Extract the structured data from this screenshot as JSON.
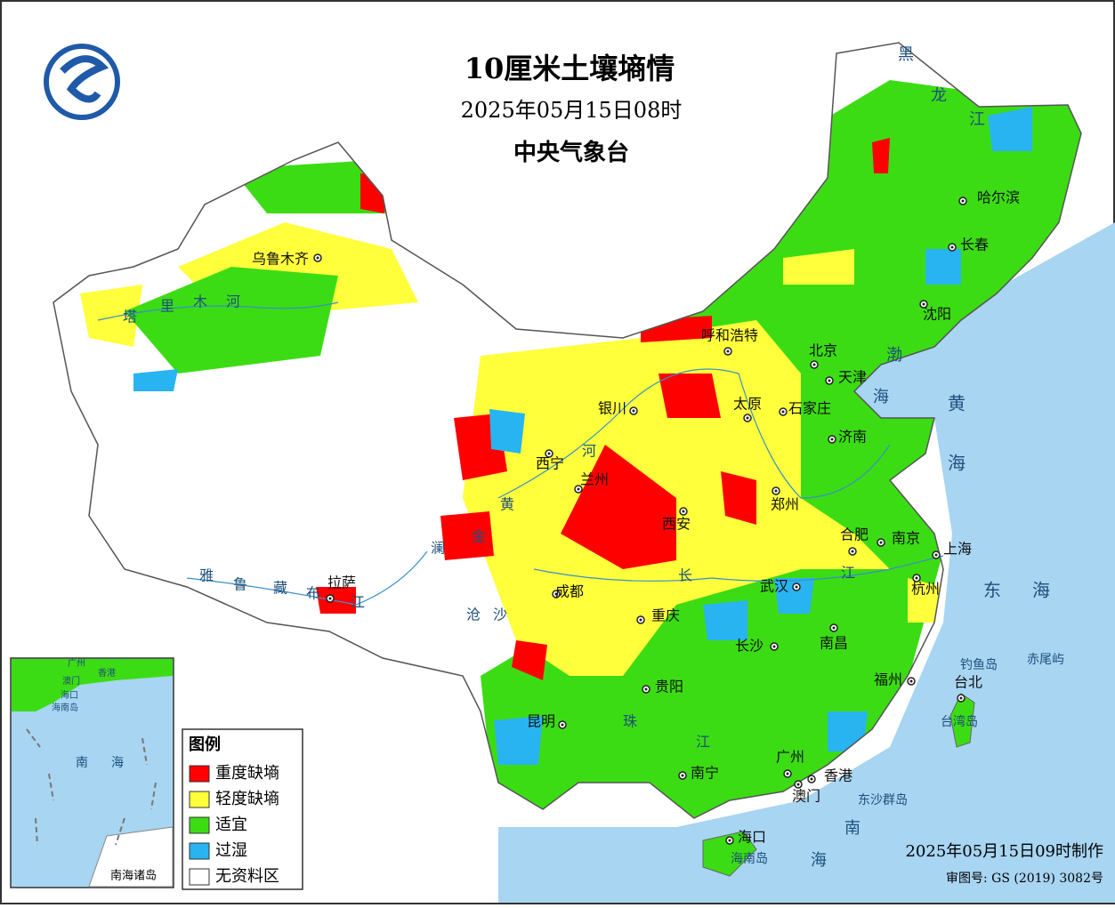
{
  "header": {
    "title": "10厘米土壤墒情",
    "datetime": "2025年05月15日08时",
    "agency": "中央气象台"
  },
  "legend": {
    "title": "图例",
    "items": [
      {
        "label": "重度缺墒",
        "color": "#ff0000"
      },
      {
        "label": "轻度缺墒",
        "color": "#ffff3c"
      },
      {
        "label": "适宜",
        "color": "#3cdc14"
      },
      {
        "label": "过湿",
        "color": "#28b4f0"
      },
      {
        "label": "无资料区",
        "color": "#ffffff"
      }
    ]
  },
  "cities": [
    "乌鲁木齐",
    "呼和浩特",
    "北京",
    "天津",
    "石家庄",
    "太原",
    "银川",
    "西宁",
    "兰州",
    "济南",
    "郑州",
    "西安",
    "合肥",
    "南京",
    "上海",
    "杭州",
    "武汉",
    "成都",
    "重庆",
    "长沙",
    "南昌",
    "贵阳",
    "昆明",
    "福州",
    "台北",
    "南宁",
    "广州",
    "香港",
    "澳门",
    "海口",
    "拉萨",
    "哈尔滨",
    "长春",
    "沈阳"
  ],
  "map_labels": [
    "黑",
    "龙",
    "江",
    "渤",
    "海",
    "黄",
    "海",
    "东",
    "海",
    "南",
    "海",
    "钓鱼岛",
    "赤尾屿",
    "台湾岛",
    "东沙群岛",
    "海南岛",
    "塔",
    "里",
    "木",
    "河",
    "雅",
    "鲁",
    "藏",
    "布",
    "江",
    "黄",
    "河",
    "金",
    "澜",
    "沧",
    "沙",
    "长",
    "江",
    "珠",
    "江"
  ],
  "inset": {
    "title": "南海诸岛",
    "labels": [
      "广州",
      "香港",
      "澳门",
      "海口",
      "海南岛",
      "南",
      "海"
    ]
  },
  "footer": {
    "made": "2025年05月15日09时制作",
    "approval": "审图号: GS (2019) 3082号"
  }
}
